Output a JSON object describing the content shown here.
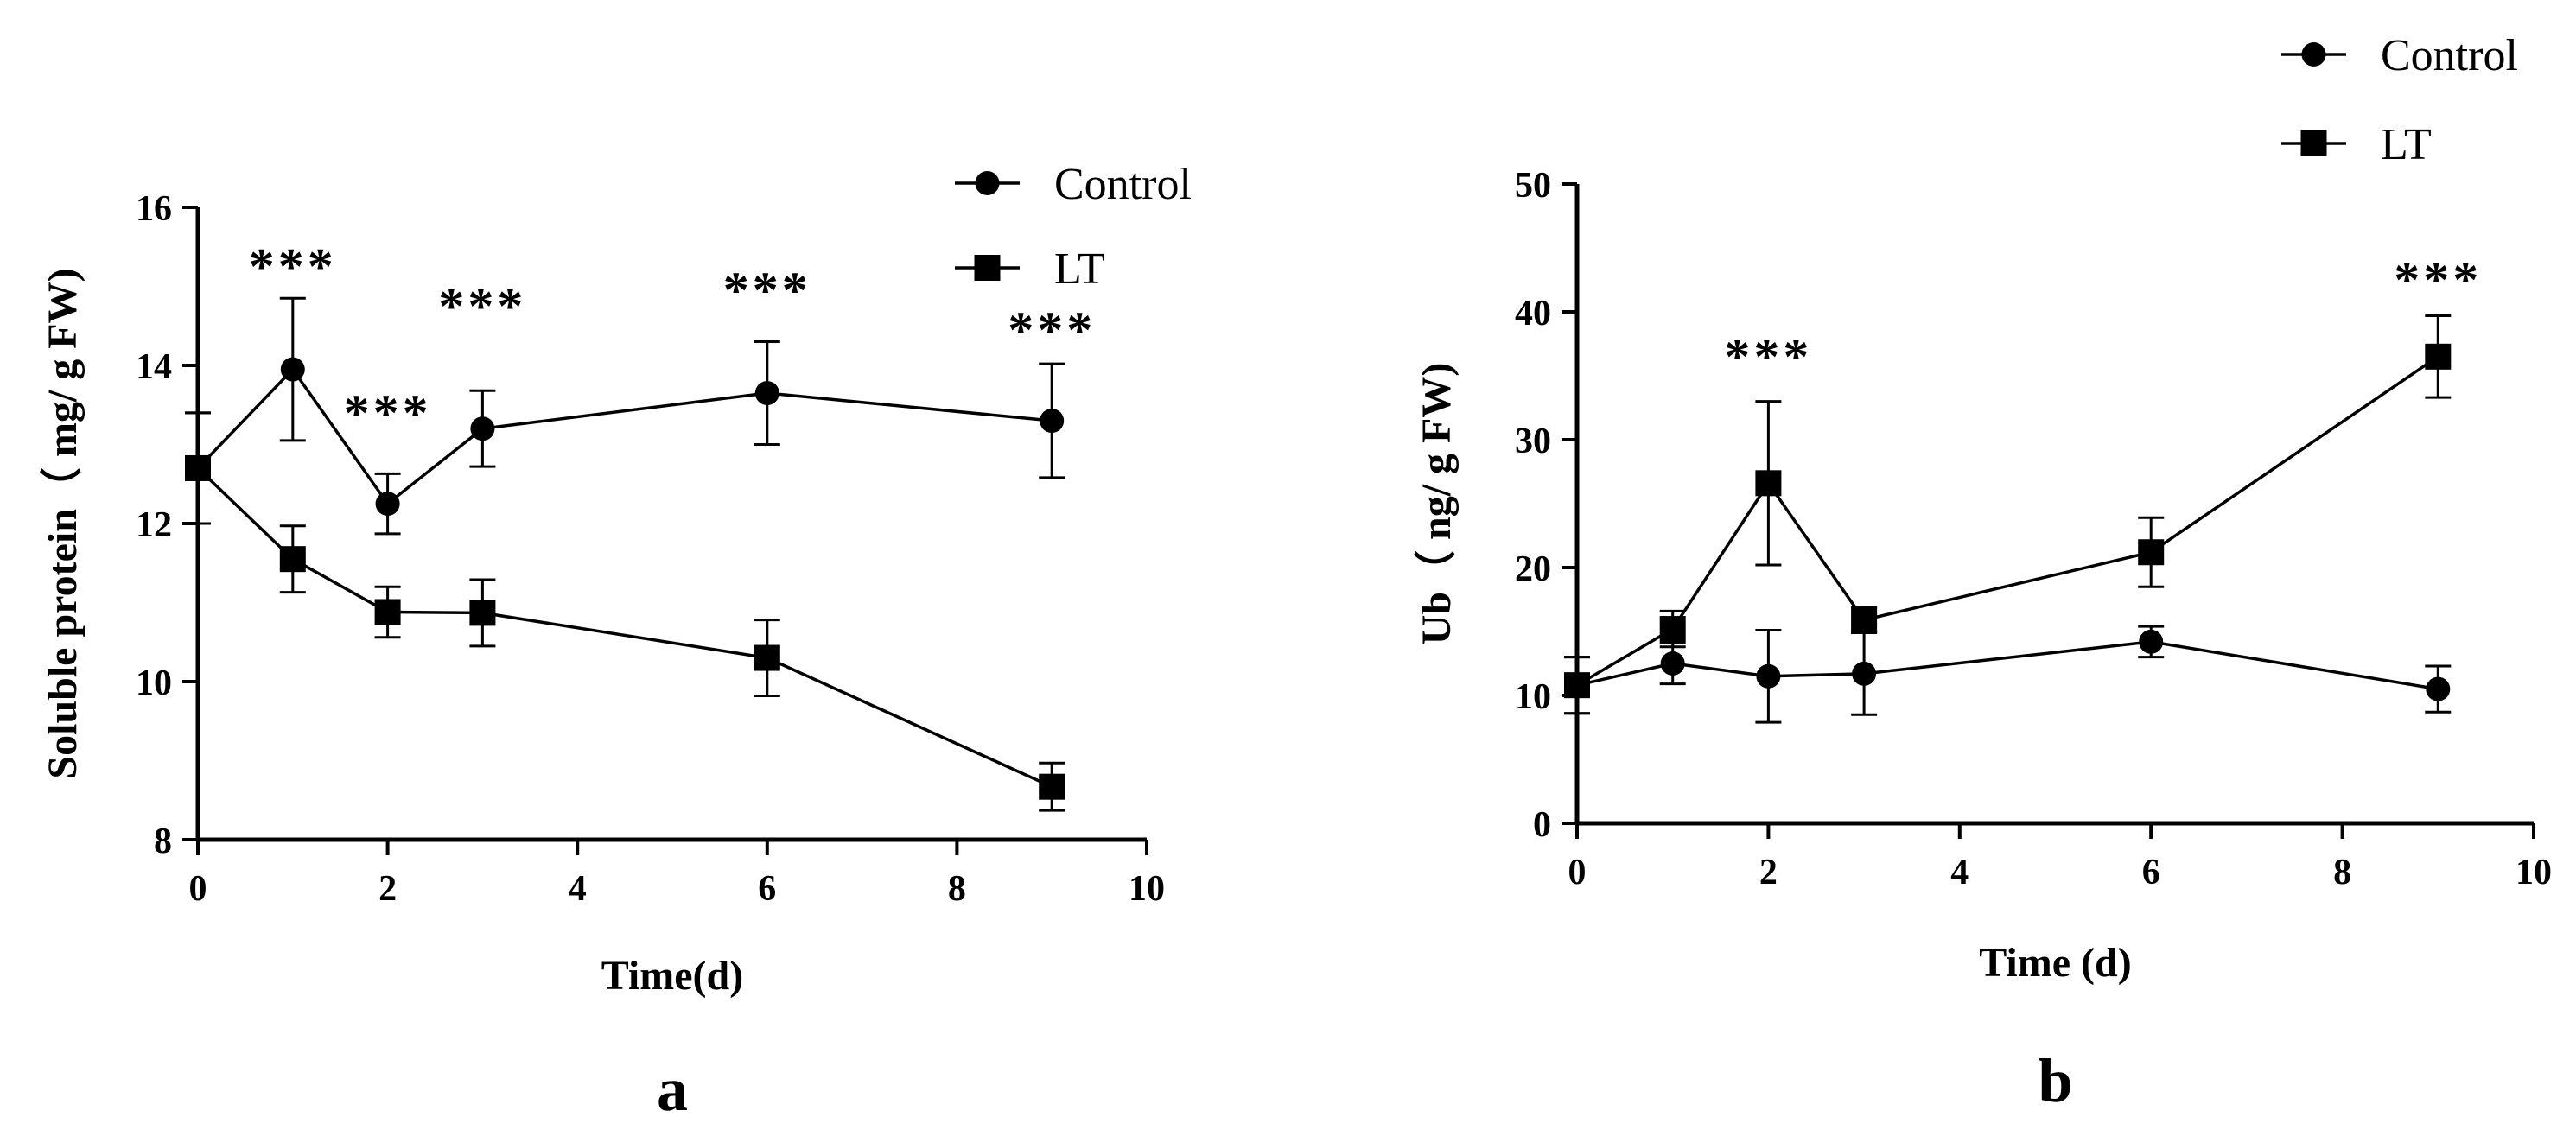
{
  "chart_data": [
    {
      "type": "line",
      "panel_label": "a",
      "xlabel": "Time(d)",
      "ylabel": "Soluble protein（ mg/ g FW)",
      "xlim": [
        0,
        10
      ],
      "ylim": [
        8,
        16
      ],
      "xticks": [
        "0",
        "2",
        "4",
        "6",
        "8",
        "10"
      ],
      "yticks": [
        "8",
        "10",
        "12",
        "14",
        "16"
      ],
      "x": [
        0,
        1,
        2,
        3,
        6,
        9
      ],
      "series": [
        {
          "name": "Control",
          "marker": "circle",
          "values": [
            12.7,
            13.95,
            12.25,
            13.2,
            13.65,
            13.3
          ],
          "errors": [
            0.7,
            0.9,
            0.38,
            0.48,
            0.65,
            0.72
          ]
        },
        {
          "name": "LT",
          "marker": "square",
          "values": [
            12.7,
            11.55,
            10.88,
            10.87,
            10.3,
            8.67
          ],
          "errors": [
            0.7,
            0.42,
            0.32,
            0.42,
            0.48,
            0.3
          ]
        }
      ],
      "annotations": [
        {
          "text": "***",
          "x": 1,
          "y": 15.25
        },
        {
          "text": "***",
          "x": 2,
          "y": 13.4
        },
        {
          "text": "***",
          "x": 3,
          "y": 14.75
        },
        {
          "text": "***",
          "x": 6,
          "y": 14.95
        },
        {
          "text": "***",
          "x": 9,
          "y": 14.45
        }
      ],
      "legend_position": "top-right"
    },
    {
      "type": "line",
      "panel_label": "b",
      "xlabel": "Time (d)",
      "ylabel": "Ub（ ng/ g FW)",
      "xlim": [
        0,
        10
      ],
      "ylim": [
        0,
        50
      ],
      "xticks": [
        "0",
        "2",
        "4",
        "6",
        "8",
        "10"
      ],
      "yticks": [
        "0",
        "10",
        "20",
        "30",
        "40",
        "50"
      ],
      "x": [
        0,
        1,
        2,
        3,
        6,
        9
      ],
      "series": [
        {
          "name": "Control",
          "marker": "circle",
          "values": [
            10.8,
            12.5,
            11.5,
            11.7,
            14.2,
            10.5
          ],
          "errors": [
            2.2,
            1.6,
            3.6,
            3.2,
            1.2,
            1.8
          ]
        },
        {
          "name": "LT",
          "marker": "square",
          "values": [
            10.8,
            15.2,
            26.6,
            15.9,
            21.2,
            36.5
          ],
          "errors": [
            2.2,
            1.4,
            6.4,
            1.0,
            2.7,
            3.2
          ]
        }
      ],
      "annotations": [
        {
          "text": "***",
          "x": 2,
          "y": 36.5
        },
        {
          "text": "***",
          "x": 9,
          "y": 42.5
        }
      ],
      "legend_position": "top-right, outside plot"
    }
  ]
}
